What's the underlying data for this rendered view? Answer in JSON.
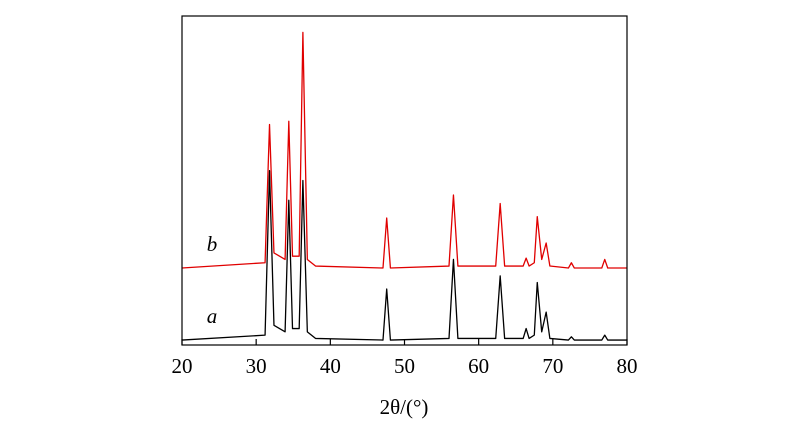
{
  "chart_data": {
    "type": "line",
    "xlabel": "2θ/(°)",
    "xlim": [
      20,
      80
    ],
    "xticks": [
      20,
      30,
      40,
      50,
      60,
      70,
      80
    ],
    "ylim": [
      0,
      100
    ],
    "x": [
      20,
      31.2,
      31.8,
      32.4,
      33.9,
      34.4,
      34.9,
      35.8,
      36.3,
      36.9,
      38,
      47.1,
      47.6,
      48.1,
      56,
      56.6,
      57.2,
      62.3,
      62.9,
      63.5,
      66,
      66.4,
      66.8,
      67.5,
      67.9,
      68.5,
      69.1,
      69.6,
      72.1,
      72.5,
      72.9,
      76.6,
      77,
      77.4,
      80
    ],
    "series": [
      {
        "name": "a",
        "color": "#000000",
        "values": [
          1.5,
          3,
          53,
          6,
          4,
          44,
          5,
          5,
          50,
          4,
          2,
          1.5,
          17,
          1.5,
          2,
          26,
          2,
          2,
          21,
          2,
          2,
          5,
          2,
          3,
          19,
          4,
          10,
          2,
          1.5,
          2.5,
          1.5,
          1.5,
          3,
          1.5,
          1.5
        ]
      },
      {
        "name": "b",
        "color": "#e00000",
        "values": [
          23.4,
          25,
          67,
          28,
          26,
          68,
          27,
          27,
          95,
          26,
          24,
          23.4,
          38.6,
          23.4,
          24,
          45.6,
          24,
          24,
          43,
          24,
          24,
          26.4,
          24,
          25,
          39,
          26,
          31,
          24,
          23.4,
          25,
          23.4,
          23.4,
          26,
          23.4,
          23.4
        ]
      }
    ]
  }
}
